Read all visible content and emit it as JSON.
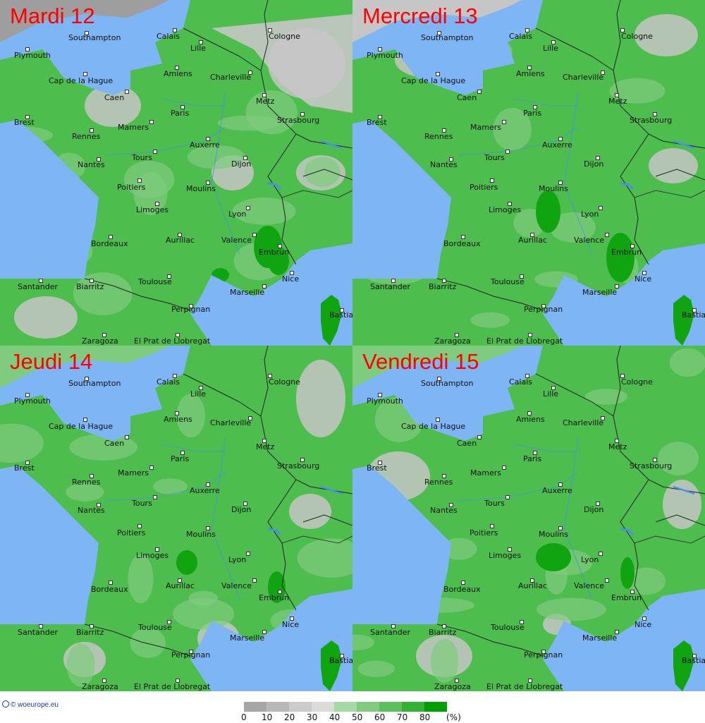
{
  "panels": [
    {
      "title": "Mardi 12",
      "variant": 0
    },
    {
      "title": "Mercredi 13",
      "variant": 1
    },
    {
      "title": "Jeudi 14",
      "variant": 2
    },
    {
      "title": "Vendredi 15",
      "variant": 3
    }
  ],
  "cities": [
    "Southampton",
    "Plymouth",
    "Calais",
    "Lille",
    "Cologne",
    "Amiens",
    "Charleville",
    "Cap de la Hague",
    "Caen",
    "Metz",
    "Paris",
    "Brest",
    "Mamers",
    "Strasbourg",
    "Rennes",
    "Auxerre",
    "Tours",
    "Nantes",
    "Dijon",
    "Poitiers",
    "Moulins",
    "Limoges",
    "Lyon",
    "Bordeaux",
    "Aurillac",
    "Valence",
    "Embrun",
    "Toulouse",
    "Nice",
    "Santander",
    "Biarritz",
    "Marseille",
    "Perpignan",
    "Bastia",
    "Zaragoza",
    "El Prat de Llobregat"
  ],
  "legend": {
    "credit": "© woeurope.eu",
    "ticks": [
      "0",
      "10",
      "20",
      "30",
      "40",
      "50",
      "60",
      "70",
      "80"
    ],
    "unit": "(%)",
    "colors": [
      "#a6a6a6",
      "#b8b8b8",
      "#cbcbcb",
      "#d9dcd9",
      "#a5d9a5",
      "#7fcc7f",
      "#5cc15c",
      "#33b133",
      "#00a000"
    ]
  },
  "map_colors": {
    "sea": "#7db5f5",
    "land_base": "#4dbd4d",
    "dry": "#c6c6c6",
    "very_dry": "#9e9e9e",
    "light_green": "#7fcc7f",
    "dark_green": "#11a411",
    "border": "#222222",
    "river": "#4a8ff0"
  }
}
